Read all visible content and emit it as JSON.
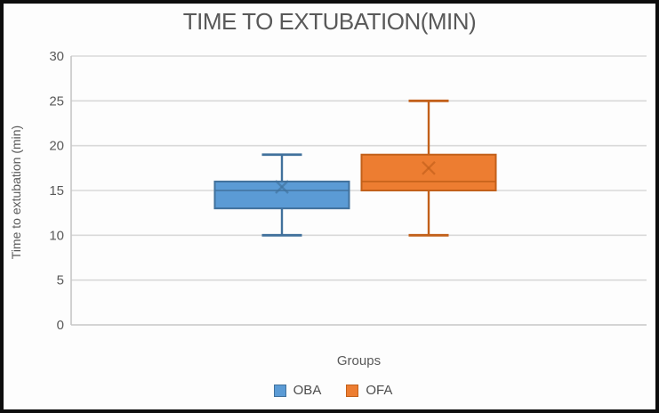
{
  "chart_data": {
    "type": "boxplot",
    "title": "TIME TO EXTUBATION(MIN)",
    "xlabel": "Groups",
    "ylabel": "Time to extubation (min)",
    "ylim": [
      0,
      30
    ],
    "ytick_step": 5,
    "yticks": [
      0,
      5,
      10,
      15,
      20,
      25,
      30
    ],
    "grid": true,
    "legend_position": "bottom",
    "categories": [
      "OBA",
      "OFA"
    ],
    "series": [
      {
        "name": "OBA",
        "min": 10,
        "q1": 13,
        "median": 15,
        "q3": 16,
        "max": 19,
        "mean": 15.4,
        "fill": "#5B9BD5",
        "stroke": "#41719C"
      },
      {
        "name": "OFA",
        "min": 10,
        "q1": 15,
        "median": 16,
        "q3": 19,
        "max": 25,
        "mean": 17.5,
        "fill": "#ED7D31",
        "stroke": "#C2601A"
      }
    ],
    "colors": {
      "grid": "#D9D9D9",
      "axis": "#C6C6C6",
      "tick_text": "#595959",
      "title_text": "#595959",
      "frame": "#0D0D0D"
    }
  }
}
